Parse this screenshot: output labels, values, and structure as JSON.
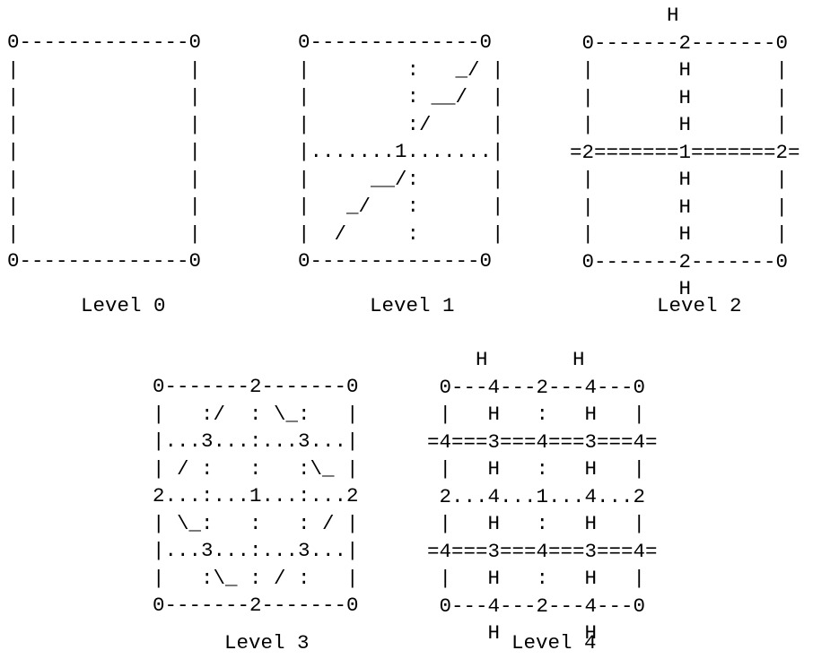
{
  "diagrams": [
    {
      "label": "Level 0",
      "art": "0--------------0\n|              |\n|              |\n|              |\n|              |\n|              |\n|              |\n|              |\n0--------------0"
    },
    {
      "label": "Level 1",
      "art": "0--------------0\n|        :   _/ |\n|        : __/  |\n|        :/     |\n|.......1.......|\n|     __/:      |\n|   _/   :      |\n|  /     :      |\n0--------------0"
    },
    {
      "label": "Level 2",
      "art": "        H\n 0-------2-------0\n |       H       |\n |       H       |\n |       H       |\n=2=======1=======2=\n |       H       |\n |       H       |\n |       H       |\n 0-------2-------0\n         H"
    },
    {
      "label": "Level 3",
      "art": "0-------2-------0\n|   :/  : \\_:   |\n|...3...:...3...|\n| / :   :   :\\_ |\n2...:...1...:...2\n| \\_:   :   : / |\n|...3...:...3...|\n|   :\\_ : / :   |\n0-------2-------0"
    },
    {
      "label": "Level 4",
      "art": "    H       H\n 0---4---2---4---0\n |   H   :   H   |\n=4===3===4===3===4=\n |   H   :   H   |\n 2...4...1...4...2\n |   H   :   H   |\n=4===3===4===3===4=\n |   H   :   H   |\n 0---4---2---4---0\n     H       H"
    }
  ]
}
